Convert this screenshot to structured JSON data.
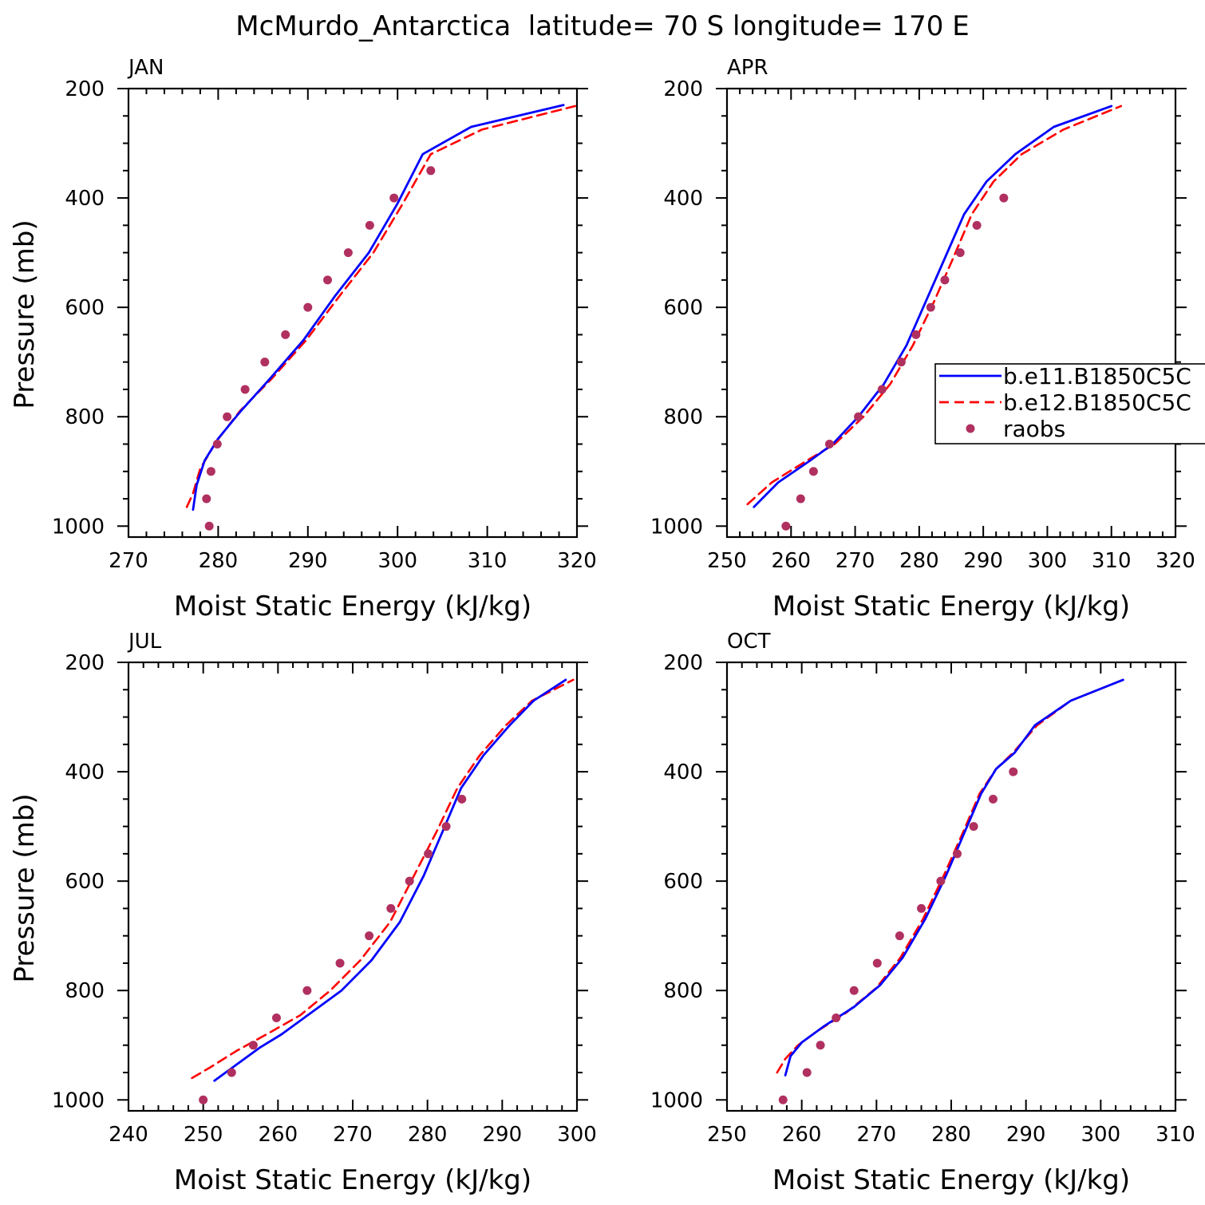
{
  "figure": {
    "title": "McMurdo_Antarctica  latitude= 70 S longitude= 170 E"
  },
  "colors": {
    "b_e11": "#0000ff",
    "b_e12": "#ff0000",
    "raobs": "#b03060",
    "axis": "#000000"
  },
  "legend": {
    "panel": "APR",
    "placement": "right, middle (clipped at figure edge)",
    "items": [
      {
        "label": "b.e11.B1850C5C",
        "style": "solid-line",
        "color_key": "b_e11"
      },
      {
        "label": "b.e12.B1850C5C",
        "style": "dashed-line",
        "color_key": "b_e12"
      },
      {
        "label": "raobs",
        "style": "marker",
        "color_key": "raobs"
      }
    ]
  },
  "chart_data": [
    {
      "type": "line",
      "panel_label": "JAN",
      "xlabel": "Moist Static Energy (kJ/kg)",
      "ylabel": "Pressure (mb)",
      "xlim": [
        270,
        320
      ],
      "ylim": [
        1020,
        200
      ],
      "y_inverted": true,
      "xticks": [
        270,
        280,
        290,
        300,
        310,
        320
      ],
      "yticks": [
        200,
        400,
        600,
        800,
        1000
      ],
      "series": [
        {
          "name": "b.e11.B1850C5C",
          "style": "solid",
          "x": [
            277.2,
            277.6,
            278.5,
            280.0,
            282.5,
            285.8,
            289.5,
            293.0,
            296.8,
            300.0,
            302.8,
            308.2,
            318.5
          ],
          "y": [
            970,
            925,
            880,
            840,
            790,
            730,
            660,
            580,
            500,
            410,
            320,
            270,
            230
          ]
        },
        {
          "name": "b.e12.B1850C5C",
          "style": "dashed",
          "x": [
            276.5,
            277.2,
            278.0,
            279.8,
            282.4,
            286.0,
            289.8,
            293.5,
            297.3,
            300.6,
            303.7,
            309.4,
            319.8
          ],
          "y": [
            965,
            940,
            895,
            845,
            790,
            730,
            660,
            580,
            500,
            410,
            320,
            275,
            232
          ]
        },
        {
          "name": "raobs",
          "style": "markers",
          "x": [
            279.0,
            278.7,
            279.2,
            279.9,
            281.0,
            283.0,
            285.2,
            287.5,
            290.0,
            292.2,
            294.5,
            296.9,
            299.6,
            303.7
          ],
          "y": [
            1000,
            950,
            900,
            850,
            800,
            750,
            700,
            650,
            600,
            550,
            500,
            450,
            400,
            350
          ]
        }
      ]
    },
    {
      "type": "line",
      "panel_label": "APR",
      "xlabel": "Moist Static Energy (kJ/kg)",
      "ylabel": "",
      "xlim": [
        250,
        320
      ],
      "ylim": [
        1020,
        200
      ],
      "y_inverted": true,
      "xticks": [
        250,
        260,
        270,
        280,
        290,
        300,
        310,
        320
      ],
      "yticks": [
        200,
        400,
        600,
        800,
        1000
      ],
      "series": [
        {
          "name": "b.e11.B1850C5C",
          "style": "solid",
          "x": [
            254.2,
            258.0,
            263.0,
            266.5,
            270.5,
            274.5,
            278.0,
            281.0,
            284.0,
            287.0,
            290.5,
            295.0,
            301.0,
            310.0
          ],
          "y": [
            965,
            920,
            880,
            850,
            800,
            740,
            670,
            590,
            510,
            430,
            370,
            320,
            270,
            232
          ]
        },
        {
          "name": "b.e12.B1850C5C",
          "style": "dashed",
          "x": [
            253.2,
            257.0,
            262.5,
            266.8,
            271.3,
            275.5,
            279.0,
            282.3,
            285.3,
            288.2,
            291.6,
            296.0,
            302.5,
            311.5
          ],
          "y": [
            960,
            920,
            880,
            850,
            800,
            740,
            670,
            590,
            510,
            430,
            370,
            320,
            275,
            232
          ]
        },
        {
          "name": "raobs",
          "style": "markers",
          "x": [
            259.2,
            261.5,
            263.5,
            266.0,
            270.5,
            274.2,
            277.2,
            279.5,
            281.8,
            284.0,
            286.4,
            289.0,
            293.2
          ],
          "y": [
            1000,
            950,
            900,
            850,
            800,
            750,
            700,
            650,
            600,
            550,
            500,
            450,
            400
          ]
        }
      ]
    },
    {
      "type": "line",
      "panel_label": "JUL",
      "xlabel": "Moist Static Energy (kJ/kg)",
      "ylabel": "Pressure (mb)",
      "xlim": [
        240,
        300
      ],
      "ylim": [
        1020,
        200
      ],
      "y_inverted": true,
      "xticks": [
        240,
        250,
        260,
        270,
        280,
        290,
        300
      ],
      "yticks": [
        200,
        400,
        600,
        800,
        1000
      ],
      "series": [
        {
          "name": "b.e11.B1850C5C",
          "style": "solid",
          "x": [
            251.5,
            254.5,
            257.5,
            260.5,
            264.5,
            268.5,
            272.5,
            276.3,
            279.5,
            282.0,
            284.5,
            287.5,
            291.0,
            294.2,
            298.5
          ],
          "y": [
            965,
            935,
            905,
            880,
            840,
            800,
            745,
            675,
            590,
            510,
            430,
            370,
            315,
            270,
            232
          ]
        },
        {
          "name": "b.e12.B1850C5C",
          "style": "dashed",
          "x": [
            248.5,
            251.0,
            254.5,
            258.5,
            263.0,
            267.0,
            271.0,
            275.0,
            278.2,
            281.2,
            284.0,
            287.0,
            290.5,
            294.0,
            299.5
          ],
          "y": [
            960,
            940,
            910,
            880,
            845,
            800,
            745,
            675,
            590,
            510,
            430,
            370,
            315,
            270,
            232
          ]
        },
        {
          "name": "raobs",
          "style": "markers",
          "x": [
            250.0,
            253.8,
            256.7,
            259.8,
            263.9,
            268.3,
            272.2,
            275.1,
            277.6,
            280.1,
            282.5,
            284.6
          ],
          "y": [
            1000,
            950,
            900,
            850,
            800,
            750,
            700,
            650,
            600,
            550,
            500,
            450
          ]
        }
      ]
    },
    {
      "type": "line",
      "panel_label": "OCT",
      "xlabel": "Moist Static Energy (kJ/kg)",
      "ylabel": "",
      "xlim": [
        250,
        310
      ],
      "ylim": [
        1020,
        200
      ],
      "y_inverted": true,
      "xticks": [
        250,
        260,
        270,
        280,
        290,
        300,
        310
      ],
      "yticks": [
        200,
        400,
        600,
        800,
        1000
      ],
      "series": [
        {
          "name": "b.e11.B1850C5C",
          "style": "solid",
          "x": [
            257.8,
            258.5,
            260.0,
            263.0,
            267.0,
            270.5,
            273.5,
            276.5,
            279.3,
            281.8,
            284.0,
            286.0,
            288.5,
            291.2,
            296.0,
            303.0
          ],
          "y": [
            955,
            920,
            895,
            865,
            830,
            790,
            740,
            670,
            590,
            510,
            440,
            395,
            365,
            315,
            270,
            232
          ]
        },
        {
          "name": "b.e12.B1850C5C",
          "style": "dashed",
          "x": [
            256.7,
            257.8,
            259.5,
            262.0,
            266.0,
            270.0,
            273.2,
            276.2,
            279.0,
            281.6,
            283.8,
            286.0,
            288.3,
            291.5,
            296.0,
            303.0
          ],
          "y": [
            950,
            925,
            900,
            875,
            840,
            795,
            740,
            670,
            590,
            510,
            440,
            395,
            365,
            315,
            270,
            232
          ]
        },
        {
          "name": "raobs",
          "style": "markers",
          "x": [
            257.5,
            260.7,
            262.5,
            264.6,
            267.0,
            270.1,
            273.1,
            276.0,
            278.6,
            280.8,
            283.0,
            285.6,
            288.3
          ],
          "y": [
            1000,
            950,
            900,
            850,
            800,
            750,
            700,
            650,
            600,
            550,
            500,
            450,
            400
          ]
        }
      ]
    }
  ]
}
